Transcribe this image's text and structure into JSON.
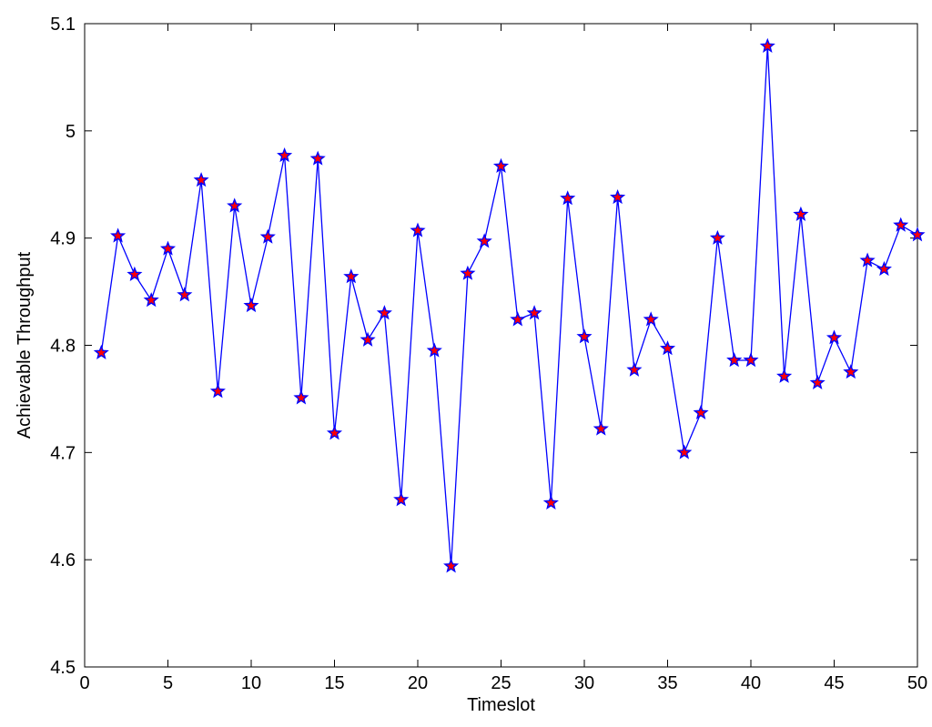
{
  "chart_data": {
    "type": "line",
    "xlabel": "Timeslot",
    "ylabel": "Achievable Throughput",
    "xlim": [
      0,
      50
    ],
    "ylim": [
      4.5,
      5.1
    ],
    "xticks": [
      "0",
      "5",
      "10",
      "15",
      "20",
      "25",
      "30",
      "35",
      "40",
      "45",
      "50"
    ],
    "yticks": [
      "4.5",
      "4.6",
      "4.7",
      "4.8",
      "4.9",
      "5",
      "5.1"
    ],
    "grid": false,
    "legend": "none",
    "colors": {
      "line": "#0000ff",
      "marker_fill": "#ff0000",
      "marker_edge": "#0000ff"
    },
    "marker": "pentagram",
    "series": [
      {
        "x": [
          1,
          2,
          3,
          4,
          5,
          6,
          7,
          8,
          9,
          10,
          11,
          12,
          13,
          14,
          15,
          16,
          17,
          18,
          19,
          20,
          21,
          22,
          23,
          24,
          25,
          26,
          27,
          28,
          29,
          30,
          31,
          32,
          33,
          34,
          35,
          36,
          37,
          38,
          39,
          40,
          41,
          42,
          43,
          44,
          45,
          46,
          47,
          48,
          49,
          50
        ],
        "values": [
          4.793,
          4.902,
          4.866,
          4.842,
          4.89,
          4.847,
          4.954,
          4.757,
          4.93,
          4.837,
          4.901,
          4.977,
          4.751,
          4.974,
          4.718,
          4.864,
          4.805,
          4.83,
          4.656,
          4.907,
          4.795,
          4.594,
          4.867,
          4.897,
          4.967,
          4.824,
          4.83,
          4.653,
          4.937,
          4.808,
          4.722,
          4.938,
          4.777,
          4.824,
          4.797,
          4.7,
          4.737,
          4.9,
          4.786,
          4.786,
          5.079,
          4.771,
          4.922,
          4.765,
          4.807,
          4.775,
          4.879,
          4.871,
          4.912,
          4.903
        ]
      }
    ]
  }
}
